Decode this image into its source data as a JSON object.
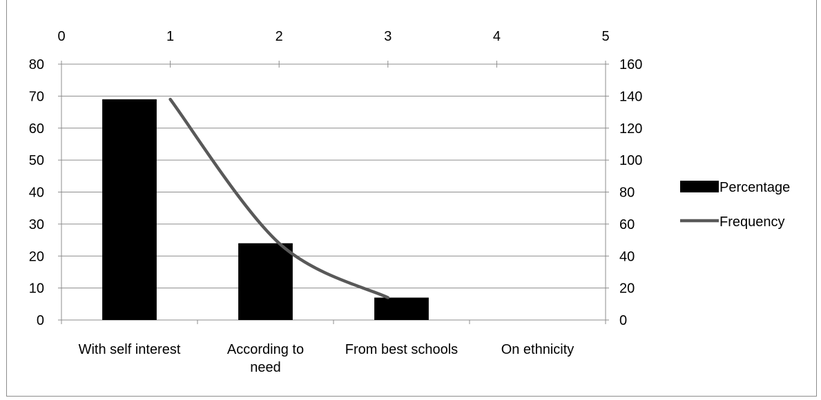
{
  "chart_data": {
    "type": "bar",
    "categories": [
      "With self interest",
      "According to need",
      "From best schools",
      "On ethnicity"
    ],
    "series": [
      {
        "name": "Percentage",
        "kind": "bar",
        "axis": "left",
        "color": "#000000",
        "values": [
          69,
          24,
          7,
          0
        ]
      },
      {
        "name": "Frequency",
        "kind": "line",
        "axis": "right",
        "color": "#595959",
        "x": [
          1,
          2,
          3
        ],
        "values": [
          138,
          48,
          14
        ]
      }
    ],
    "y_left": {
      "min": 0,
      "max": 80,
      "step": 10,
      "ticks": [
        "0",
        "10",
        "20",
        "30",
        "40",
        "50",
        "60",
        "70",
        "80"
      ]
    },
    "y_right": {
      "min": 0,
      "max": 160,
      "step": 20,
      "ticks": [
        "0",
        "20",
        "40",
        "60",
        "80",
        "100",
        "120",
        "140",
        "160"
      ]
    },
    "x_top": {
      "min": 0,
      "max": 5,
      "step": 1,
      "ticks": [
        "0",
        "1",
        "2",
        "3",
        "4",
        "5"
      ]
    },
    "category_labels": [
      [
        "With self interest"
      ],
      [
        "According to",
        "need"
      ],
      [
        "From best schools"
      ],
      [
        "On ethnicity"
      ]
    ],
    "grid": true,
    "legend_position": "right",
    "title": "",
    "xlabel": "",
    "ylabel": ""
  }
}
